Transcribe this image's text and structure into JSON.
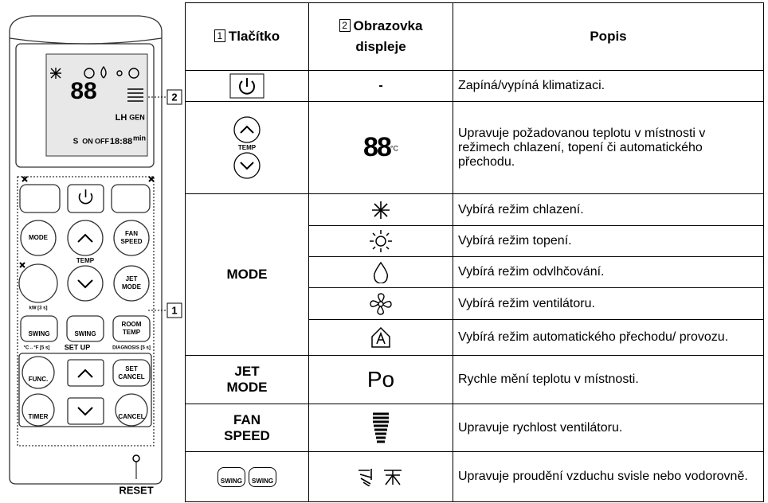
{
  "remote": {
    "lcd": {
      "digits": "88",
      "lh": "LH",
      "gen": "GEN",
      "s": "S",
      "on": "ON",
      "off": "OFF",
      "time": "18:88",
      "min": "min"
    },
    "buttons": {
      "mode": "MODE",
      "fan_speed": [
        "FAN",
        "SPEED"
      ],
      "temp": "TEMP",
      "jet_mode": [
        "JET",
        "MODE"
      ],
      "kw": "kW [3 s]",
      "swing_v": "SWING",
      "swing_h": "SWING",
      "room_temp": [
        "ROOM",
        "TEMP"
      ],
      "unit_switch": "°C↔°F [5 s]",
      "diagnosis": "DIAGNOSIS [5 s]",
      "set_up": "SET UP",
      "func": "FUNC.",
      "set_cancel": [
        "SET",
        "CANCEL"
      ],
      "timer": "TIMER",
      "cancel": "CANCEL"
    },
    "callouts": {
      "display": "2",
      "buttons": "1",
      "reset": "RESET"
    }
  },
  "table": {
    "header": {
      "button_number": "1",
      "button": "Tlačítko",
      "display_number": "2",
      "display": "Obrazovka displeje",
      "description": "Popis"
    },
    "rows": [
      {
        "display": "-",
        "description": "Zapíná/vypíná klimatizaci."
      },
      {
        "button": "TEMP",
        "display": "88",
        "display_unit": "°C",
        "description": "Upravuje požadovanou teplotu v místnosti v režimech chlazení, topení či automatického přechodu."
      },
      {
        "button": "MODE",
        "description": "Vybírá režim chlazení."
      },
      {
        "description": "Vybírá režim topení."
      },
      {
        "description": "Vybírá režim odvlhčování."
      },
      {
        "description": "Vybírá režim ventilátoru."
      },
      {
        "description": "Vybírá režim automatického přechodu/ provozu."
      },
      {
        "button": [
          "JET",
          "MODE"
        ],
        "display": "Po",
        "description": "Rychle mění teplotu v místnosti."
      },
      {
        "button": [
          "FAN",
          "SPEED"
        ],
        "description": "Upravuje rychlost ventilátoru."
      },
      {
        "button": [
          "SWING",
          "SWING"
        ],
        "description": "Upravuje proudění vzduchu svisle nebo vodorovně."
      }
    ]
  }
}
